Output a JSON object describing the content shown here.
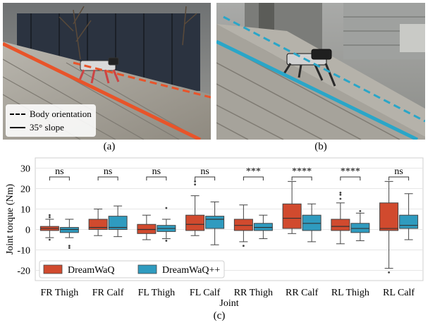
{
  "panels": {
    "a": {
      "caption": "(a)",
      "legend": [
        {
          "label": "Body orientation",
          "style": "dashed"
        },
        {
          "label": "35° slope",
          "style": "solid"
        }
      ],
      "line_color": "#e8542a"
    },
    "b": {
      "caption": "(b)",
      "line_color": "#2aa6c8"
    },
    "c": {
      "caption": "(c)"
    }
  },
  "chart_data": {
    "type": "box",
    "xlabel": "Joint",
    "ylabel": "Joint torque (Nm)",
    "ylim": [
      -25,
      35
    ],
    "yticks": [
      -20,
      -10,
      0,
      10,
      20,
      30
    ],
    "grid": true,
    "legend_placement": "bottom-left",
    "categories": [
      "FR Thigh",
      "FR Calf",
      "FL Thigh",
      "FL Calf",
      "RR Thigh",
      "RR Calf",
      "RL Thigh",
      "RL Calf"
    ],
    "significance": [
      "ns",
      "ns",
      "ns",
      "ns",
      "***",
      "****",
      "****",
      "ns"
    ],
    "series": [
      {
        "name": "DreamWaQ",
        "color": "#d14a2e",
        "boxes": [
          {
            "q1": -0.5,
            "median": 0.5,
            "q3": 1.5,
            "whisker_low": -4,
            "whisker_high": 5,
            "outliers": [
              7,
              6,
              -5
            ]
          },
          {
            "q1": 0,
            "median": 1,
            "q3": 5,
            "whisker_low": -3,
            "whisker_high": 10,
            "outliers": []
          },
          {
            "q1": -2,
            "median": 0,
            "q3": 2.5,
            "whisker_low": -5,
            "whisker_high": 7,
            "outliers": []
          },
          {
            "q1": -0.5,
            "median": 2.5,
            "q3": 7,
            "whisker_low": -3,
            "whisker_high": 16.5,
            "outliers": [
              22,
              23.5
            ]
          },
          {
            "q1": -0.5,
            "median": 2,
            "q3": 5,
            "whisker_low": -6,
            "whisker_high": 12,
            "outliers": [
              -8
            ]
          },
          {
            "q1": 0.5,
            "median": 5.5,
            "q3": 12.5,
            "whisker_low": -2,
            "whisker_high": 23.5,
            "outliers": []
          },
          {
            "q1": -0.5,
            "median": 1.5,
            "q3": 5,
            "whisker_low": -7,
            "whisker_high": 13,
            "outliers": [
              15,
              17,
              18
            ]
          },
          {
            "q1": -0.5,
            "median": 0.5,
            "q3": 13,
            "whisker_low": -19,
            "whisker_high": 23.5,
            "outliers": [
              -21
            ]
          }
        ]
      },
      {
        "name": "DreamWaQ++",
        "color": "#2f9bbf",
        "boxes": [
          {
            "q1": -1.5,
            "median": 0,
            "q3": 1,
            "whisker_low": -4,
            "whisker_high": 5,
            "outliers": [
              -8,
              -9
            ]
          },
          {
            "q1": 0,
            "median": 1,
            "q3": 6.5,
            "whisker_low": -3.5,
            "whisker_high": 11.5,
            "outliers": []
          },
          {
            "q1": -1,
            "median": 0.5,
            "q3": 2,
            "whisker_low": -4.5,
            "whisker_high": 5,
            "outliers": [
              10.5,
              -5.5
            ]
          },
          {
            "q1": 0.5,
            "median": 5,
            "q3": 6.5,
            "whisker_low": -7.5,
            "whisker_high": 13.5,
            "outliers": []
          },
          {
            "q1": -0.5,
            "median": 1,
            "q3": 3,
            "whisker_low": -4.5,
            "whisker_high": 7,
            "outliers": []
          },
          {
            "q1": -0.5,
            "median": 3,
            "q3": 7,
            "whisker_low": -6,
            "whisker_high": 12.5,
            "outliers": []
          },
          {
            "q1": -1.5,
            "median": 0.5,
            "q3": 3,
            "whisker_low": -5.5,
            "whisker_high": 8,
            "outliers": [
              9
            ]
          },
          {
            "q1": 0.5,
            "median": 2,
            "q3": 7,
            "whisker_low": -5,
            "whisker_high": 17.5,
            "outliers": []
          }
        ]
      }
    ]
  }
}
